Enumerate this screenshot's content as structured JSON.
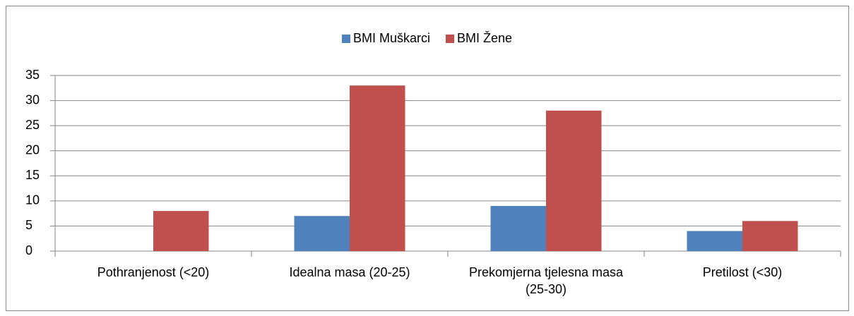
{
  "chart_data": {
    "type": "bar",
    "categories": [
      "Pothranjenost (<20)",
      "Idealna masa (20-25)",
      "Prekomjerna tjelesna masa (25-30)",
      "Pretilost (<30)"
    ],
    "series": [
      {
        "name": "BMI Muškarci",
        "color": "#4f81bd",
        "values": [
          0,
          7,
          9,
          4
        ]
      },
      {
        "name": "BMI Žene",
        "color": "#c0504d",
        "values": [
          8,
          33,
          28,
          6
        ]
      }
    ],
    "ylim": [
      0,
      35
    ],
    "yticks": [
      0,
      5,
      10,
      15,
      20,
      25,
      30,
      35
    ],
    "grid": true,
    "legend": "top"
  }
}
